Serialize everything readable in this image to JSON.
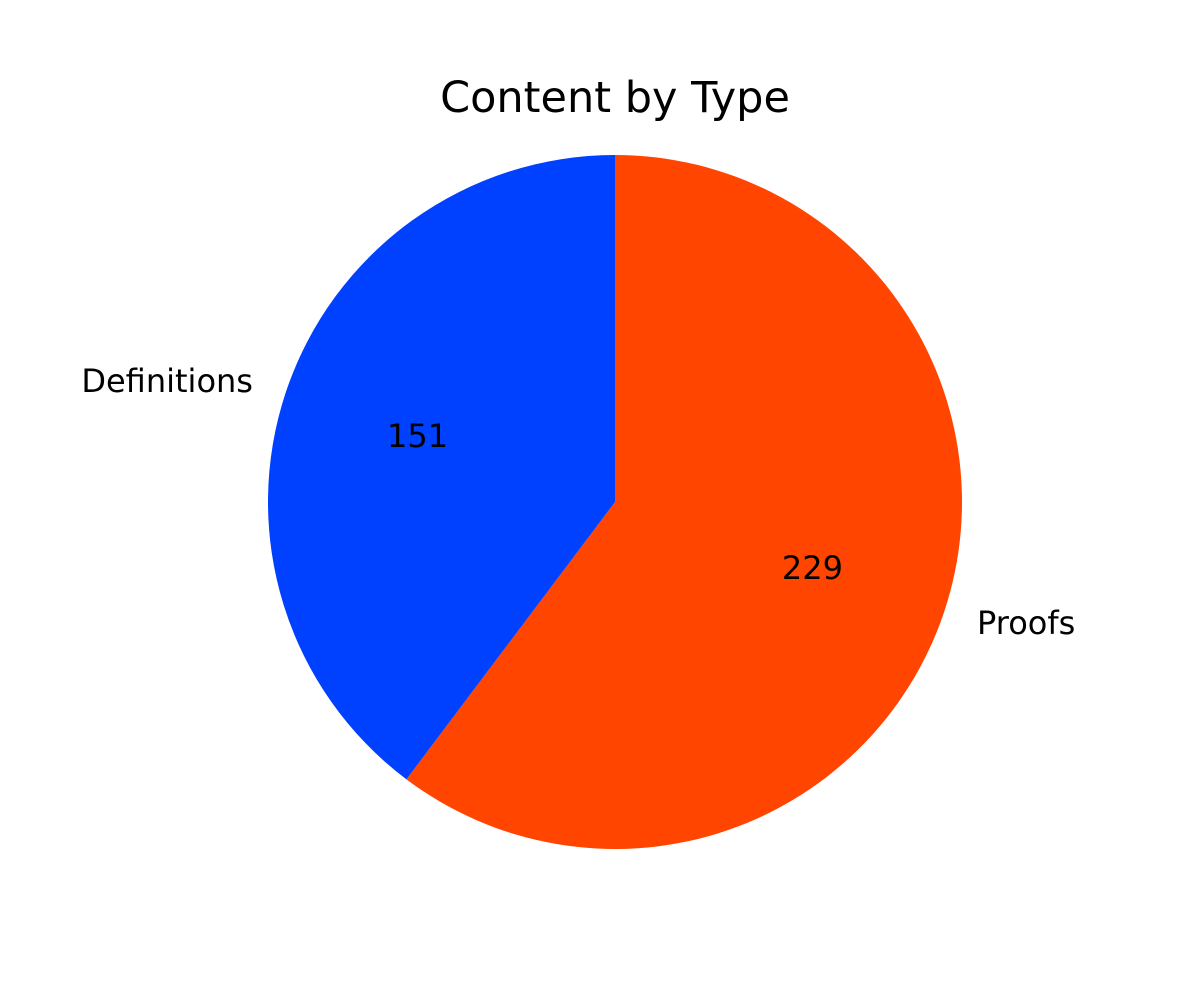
{
  "chart_data": {
    "type": "pie",
    "title": "Content by Type",
    "start_angle_deg": 90,
    "direction": "clockwise",
    "slices": [
      {
        "label": "Proofs",
        "value": 229,
        "color": "#ff4500"
      },
      {
        "label": "Definitions",
        "value": 151,
        "color": "#0040ff"
      }
    ]
  }
}
